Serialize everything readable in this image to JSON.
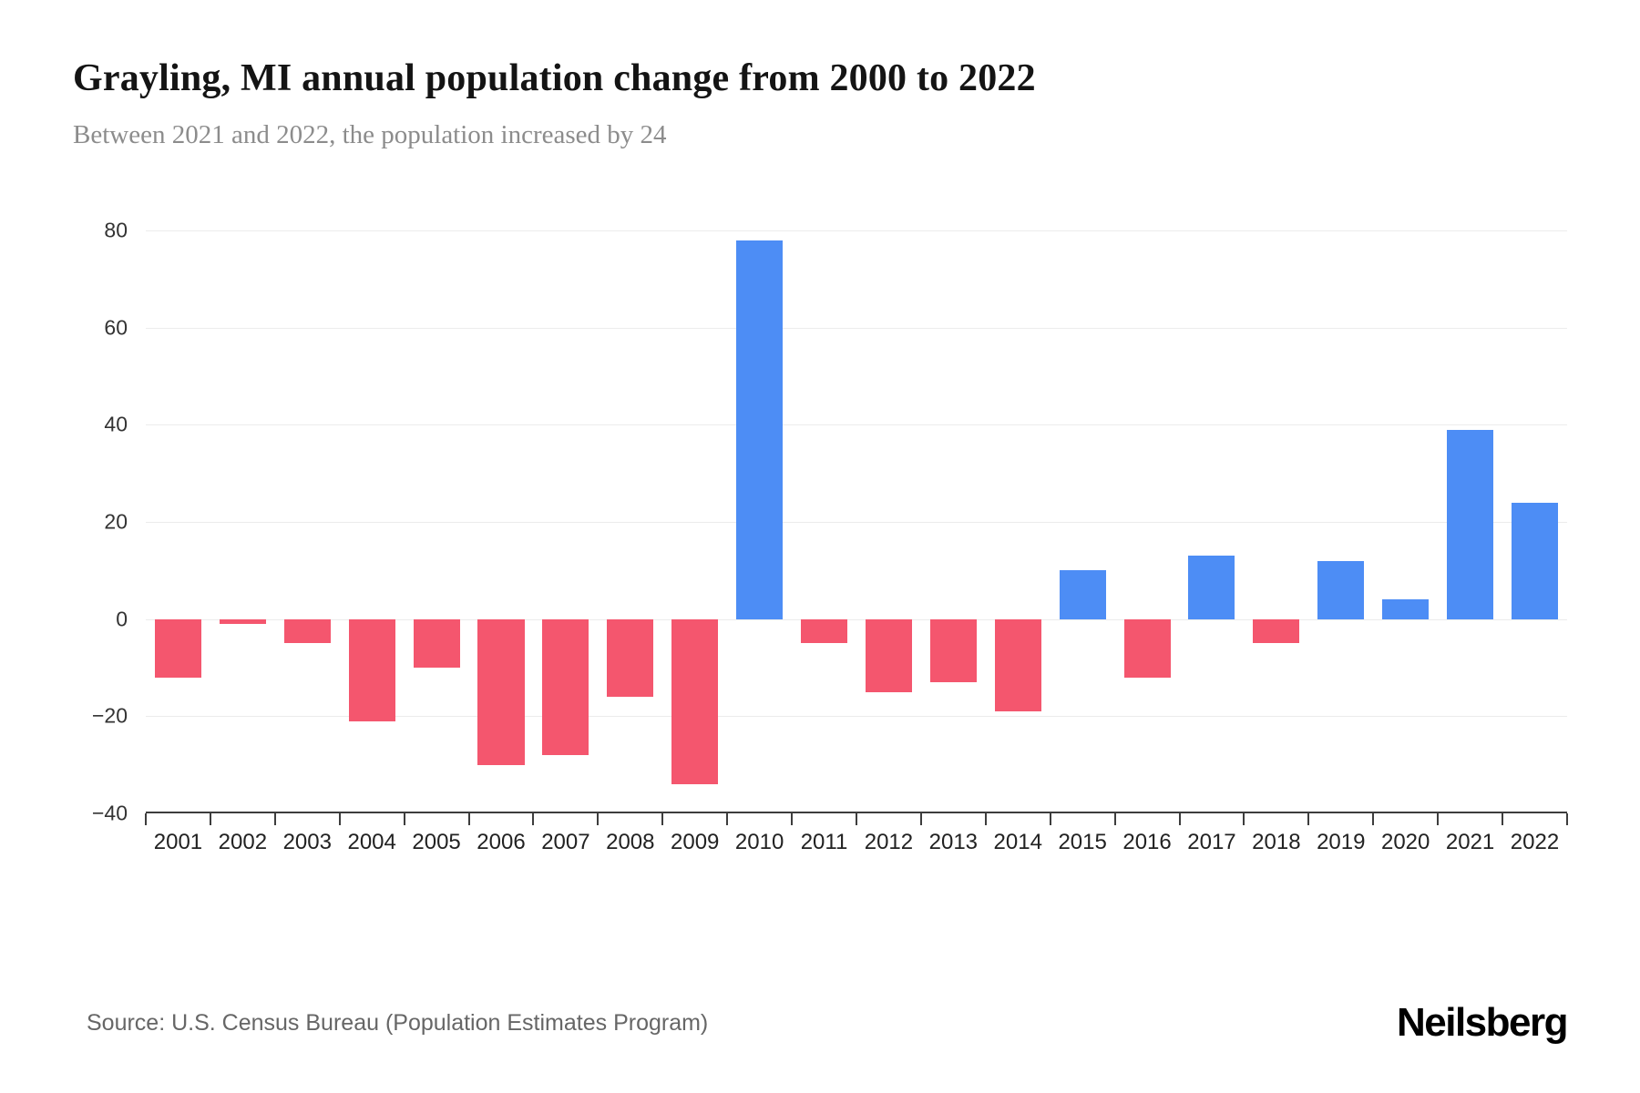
{
  "header": {
    "title": "Grayling, MI annual population change from 2000 to 2022",
    "subtitle": "Between 2021 and 2022, the population increased by 24"
  },
  "chart_data": {
    "type": "bar",
    "title": "Grayling, MI annual population change from 2000 to 2022",
    "xlabel": "",
    "ylabel": "",
    "categories": [
      "2001",
      "2002",
      "2003",
      "2004",
      "2005",
      "2006",
      "2007",
      "2008",
      "2009",
      "2010",
      "2011",
      "2012",
      "2013",
      "2014",
      "2015",
      "2016",
      "2017",
      "2018",
      "2019",
      "2020",
      "2021",
      "2022"
    ],
    "values": [
      -12,
      -1,
      -5,
      -21,
      -10,
      -30,
      -28,
      -16,
      -34,
      78,
      -5,
      -15,
      -13,
      -19,
      10,
      -12,
      13,
      -5,
      12,
      4,
      39,
      24
    ],
    "ylim": [
      -40,
      80
    ],
    "yticks": [
      {
        "label": "80",
        "value": 80
      },
      {
        "label": "60",
        "value": 60
      },
      {
        "label": "40",
        "value": 40
      },
      {
        "label": "20",
        "value": 20
      },
      {
        "label": "0",
        "value": 0
      },
      {
        "label": "−20",
        "value": -20
      },
      {
        "label": "−40",
        "value": -40
      }
    ],
    "grid": true,
    "legend_position": "none",
    "positive_color": "#4d8df5",
    "negative_color": "#f4566e"
  },
  "footer": {
    "source": "Source: U.S. Census Bureau (Population Estimates Program)",
    "brand": "Neilsberg"
  }
}
